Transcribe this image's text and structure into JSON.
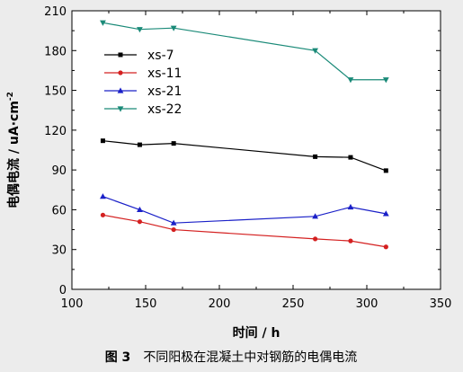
{
  "chart_data": {
    "type": "line",
    "xlabel": "时间 / h",
    "ylabel": "电偶电流 / uA·cm",
    "ylabel_sup": "-2",
    "xlim": [
      100,
      350
    ],
    "ylim": [
      0,
      210
    ],
    "xticks": [
      100,
      150,
      200,
      250,
      300,
      350
    ],
    "yticks": [
      0,
      30,
      60,
      90,
      120,
      150,
      180,
      210
    ],
    "legend_position": "top-left",
    "grid": false,
    "series": [
      {
        "name": "xs-7",
        "color": "#000000",
        "marker": "square",
        "x": [
          121,
          146,
          169,
          265,
          289,
          313
        ],
        "y": [
          112,
          109,
          110,
          100,
          99.5,
          89.5
        ]
      },
      {
        "name": "xs-11",
        "color": "#d42020",
        "marker": "circle",
        "x": [
          121,
          146,
          169,
          265,
          289,
          313
        ],
        "y": [
          56,
          51,
          45,
          38,
          36.5,
          32
        ]
      },
      {
        "name": "xs-21",
        "color": "#1a20c8",
        "marker": "triangle-up",
        "x": [
          121,
          146,
          169,
          265,
          289,
          313
        ],
        "y": [
          70,
          60,
          50,
          55,
          62,
          57
        ]
      },
      {
        "name": "xs-22",
        "color": "#1a8a78",
        "marker": "triangle-down",
        "x": [
          121,
          146,
          169,
          265,
          289,
          313
        ],
        "y": [
          201,
          196,
          197,
          180,
          158,
          158
        ]
      }
    ]
  },
  "caption": {
    "label": "图 3",
    "text": "不同阳极在混凝土中对钢筋的电偶电流"
  }
}
